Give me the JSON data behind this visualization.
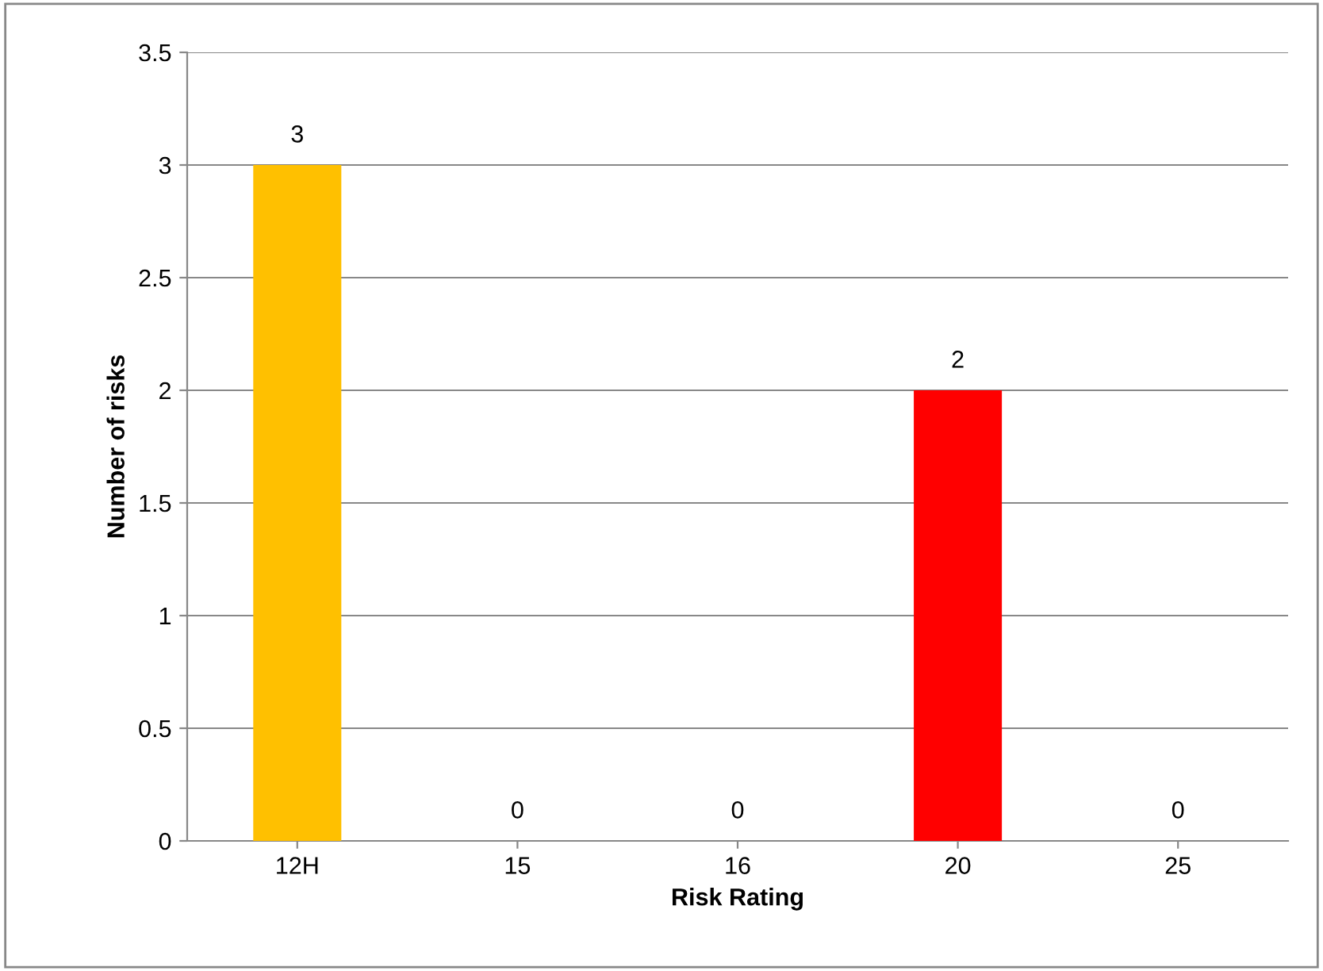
{
  "chart_data": {
    "type": "bar",
    "xlabel": "Risk Rating",
    "ylabel": "Number of risks",
    "categories": [
      "12H",
      "15",
      "16",
      "20",
      "25"
    ],
    "values": [
      3,
      0,
      0,
      2,
      0
    ],
    "colors": [
      "#ffc000",
      "#ff0000",
      "#ff0000",
      "#ff0000",
      "#ff0000"
    ],
    "ylim": [
      0,
      3.5
    ],
    "yticks": [
      0,
      0.5,
      1,
      1.5,
      2,
      2.5,
      3,
      3.5
    ],
    "grid": "y",
    "data_labels": true
  }
}
